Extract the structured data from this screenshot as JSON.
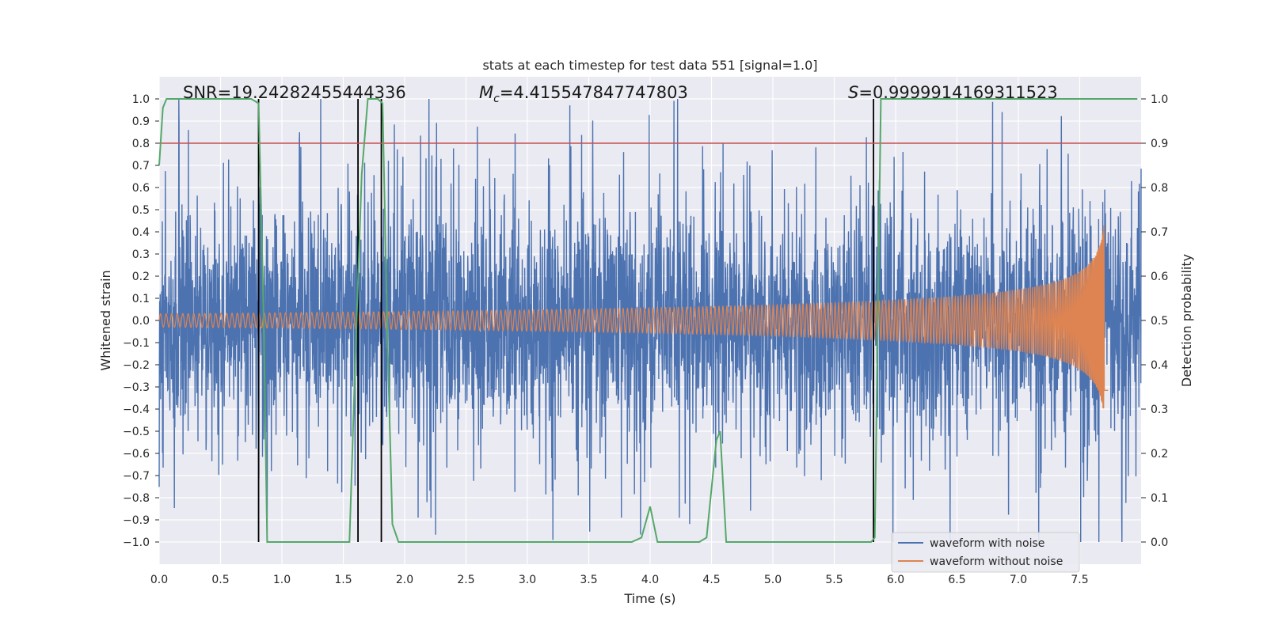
{
  "chart_data": {
    "type": "line",
    "title": "stats at each timestep for test data 551 [signal=1.0]",
    "xlabel": "Time (s)",
    "ylabel_left": "Whitened strain",
    "ylabel_right": "Detection probability",
    "xlim": [
      0.0,
      8.0
    ],
    "ylim_left": [
      -1.1,
      1.1
    ],
    "ylim_right": [
      -0.05,
      1.05
    ],
    "x_ticks": [
      0.0,
      0.5,
      1.0,
      1.5,
      2.0,
      2.5,
      3.0,
      3.5,
      4.0,
      4.5,
      5.0,
      5.5,
      6.0,
      6.5,
      7.0,
      7.5
    ],
    "x_tick_labels": [
      "0.0",
      "0.5",
      "1.0",
      "1.5",
      "2.0",
      "2.5",
      "3.0",
      "3.5",
      "4.0",
      "4.5",
      "5.0",
      "5.5",
      "6.0",
      "6.5",
      "7.0",
      "7.5"
    ],
    "y_left_ticks": [
      1.0,
      0.9,
      0.8,
      0.7,
      0.6,
      0.5,
      0.4,
      0.3,
      0.2,
      0.1,
      0.0,
      -0.1,
      -0.2,
      -0.3,
      -0.4,
      -0.5,
      -0.6,
      -0.7,
      -0.8,
      -0.9,
      -1.0
    ],
    "y_left_tick_labels": [
      "1.0",
      "0.9",
      "0.8",
      "0.7",
      "0.6",
      "0.5",
      "0.4",
      "0.3",
      "0.2",
      "0.1",
      "0.0",
      "−0.1",
      "−0.2",
      "−0.3",
      "−0.4",
      "−0.5",
      "−0.6",
      "−0.7",
      "−0.8",
      "−0.9",
      "−1.0"
    ],
    "y_right_ticks": [
      1.0,
      0.9,
      0.8,
      0.7,
      0.6,
      0.5,
      0.4,
      0.3,
      0.2,
      0.1,
      0.0
    ],
    "y_right_tick_labels": [
      "1.0",
      "0.9",
      "0.8",
      "0.7",
      "0.6",
      "0.5",
      "0.4",
      "0.3",
      "0.2",
      "0.1",
      "0.0"
    ],
    "grid": true,
    "legend_placement": "lower-right",
    "annotations": {
      "snr": "SNR=19.24282455444336",
      "mc_symbol": "M",
      "mc_sub": "c",
      "mc_value": "=4.415547847747803",
      "s_symbol": "S",
      "s_value": "=0.9999914169311523"
    },
    "threshold_line": {
      "y_right": 0.9,
      "color": "#c44e52"
    },
    "vertical_lines": [
      0.81,
      1.62,
      1.81,
      5.82
    ],
    "series": [
      {
        "name": "waveform with noise",
        "color": "#4c72b0",
        "kind": "noise",
        "t_range": [
          0.0,
          8.0
        ],
        "amplitude_range": [
          -1.0,
          1.0
        ],
        "typical_envelope": 0.42
      },
      {
        "name": "waveform without noise",
        "color": "#dd8452",
        "kind": "chirp",
        "t_range": [
          0.0,
          7.73
        ],
        "merger_time": 7.73,
        "start_amplitude": 0.03,
        "peak_amplitude": 0.44
      },
      {
        "color": "#55a868",
        "kind": "probability",
        "x": [
          0.0,
          0.03,
          0.06,
          0.11,
          0.5,
          0.75,
          0.81,
          0.85,
          0.88,
          1.0,
          1.2,
          1.4,
          1.55,
          1.6,
          1.65,
          1.7,
          1.78,
          1.82,
          1.86,
          1.9,
          1.95,
          2.5,
          3.0,
          3.5,
          3.85,
          3.93,
          4.0,
          4.06,
          4.2,
          4.4,
          4.46,
          4.54,
          4.57,
          4.62,
          4.7,
          5.0,
          5.5,
          5.8,
          5.83,
          5.88,
          6.0,
          6.5,
          7.0,
          7.5,
          7.97
        ],
        "y": [
          0.85,
          0.98,
          1.0,
          1.0,
          1.0,
          1.0,
          0.99,
          0.52,
          0.0,
          0.0,
          0.0,
          0.0,
          0.0,
          0.43,
          0.83,
          1.0,
          1.0,
          0.99,
          0.46,
          0.04,
          0.0,
          0.0,
          0.0,
          0.0,
          0.0,
          0.01,
          0.08,
          0.0,
          0.0,
          0.0,
          0.01,
          0.23,
          0.25,
          0.0,
          0.0,
          0.0,
          0.0,
          0.0,
          0.01,
          1.0,
          1.0,
          1.0,
          1.0,
          1.0,
          1.0
        ]
      }
    ]
  }
}
